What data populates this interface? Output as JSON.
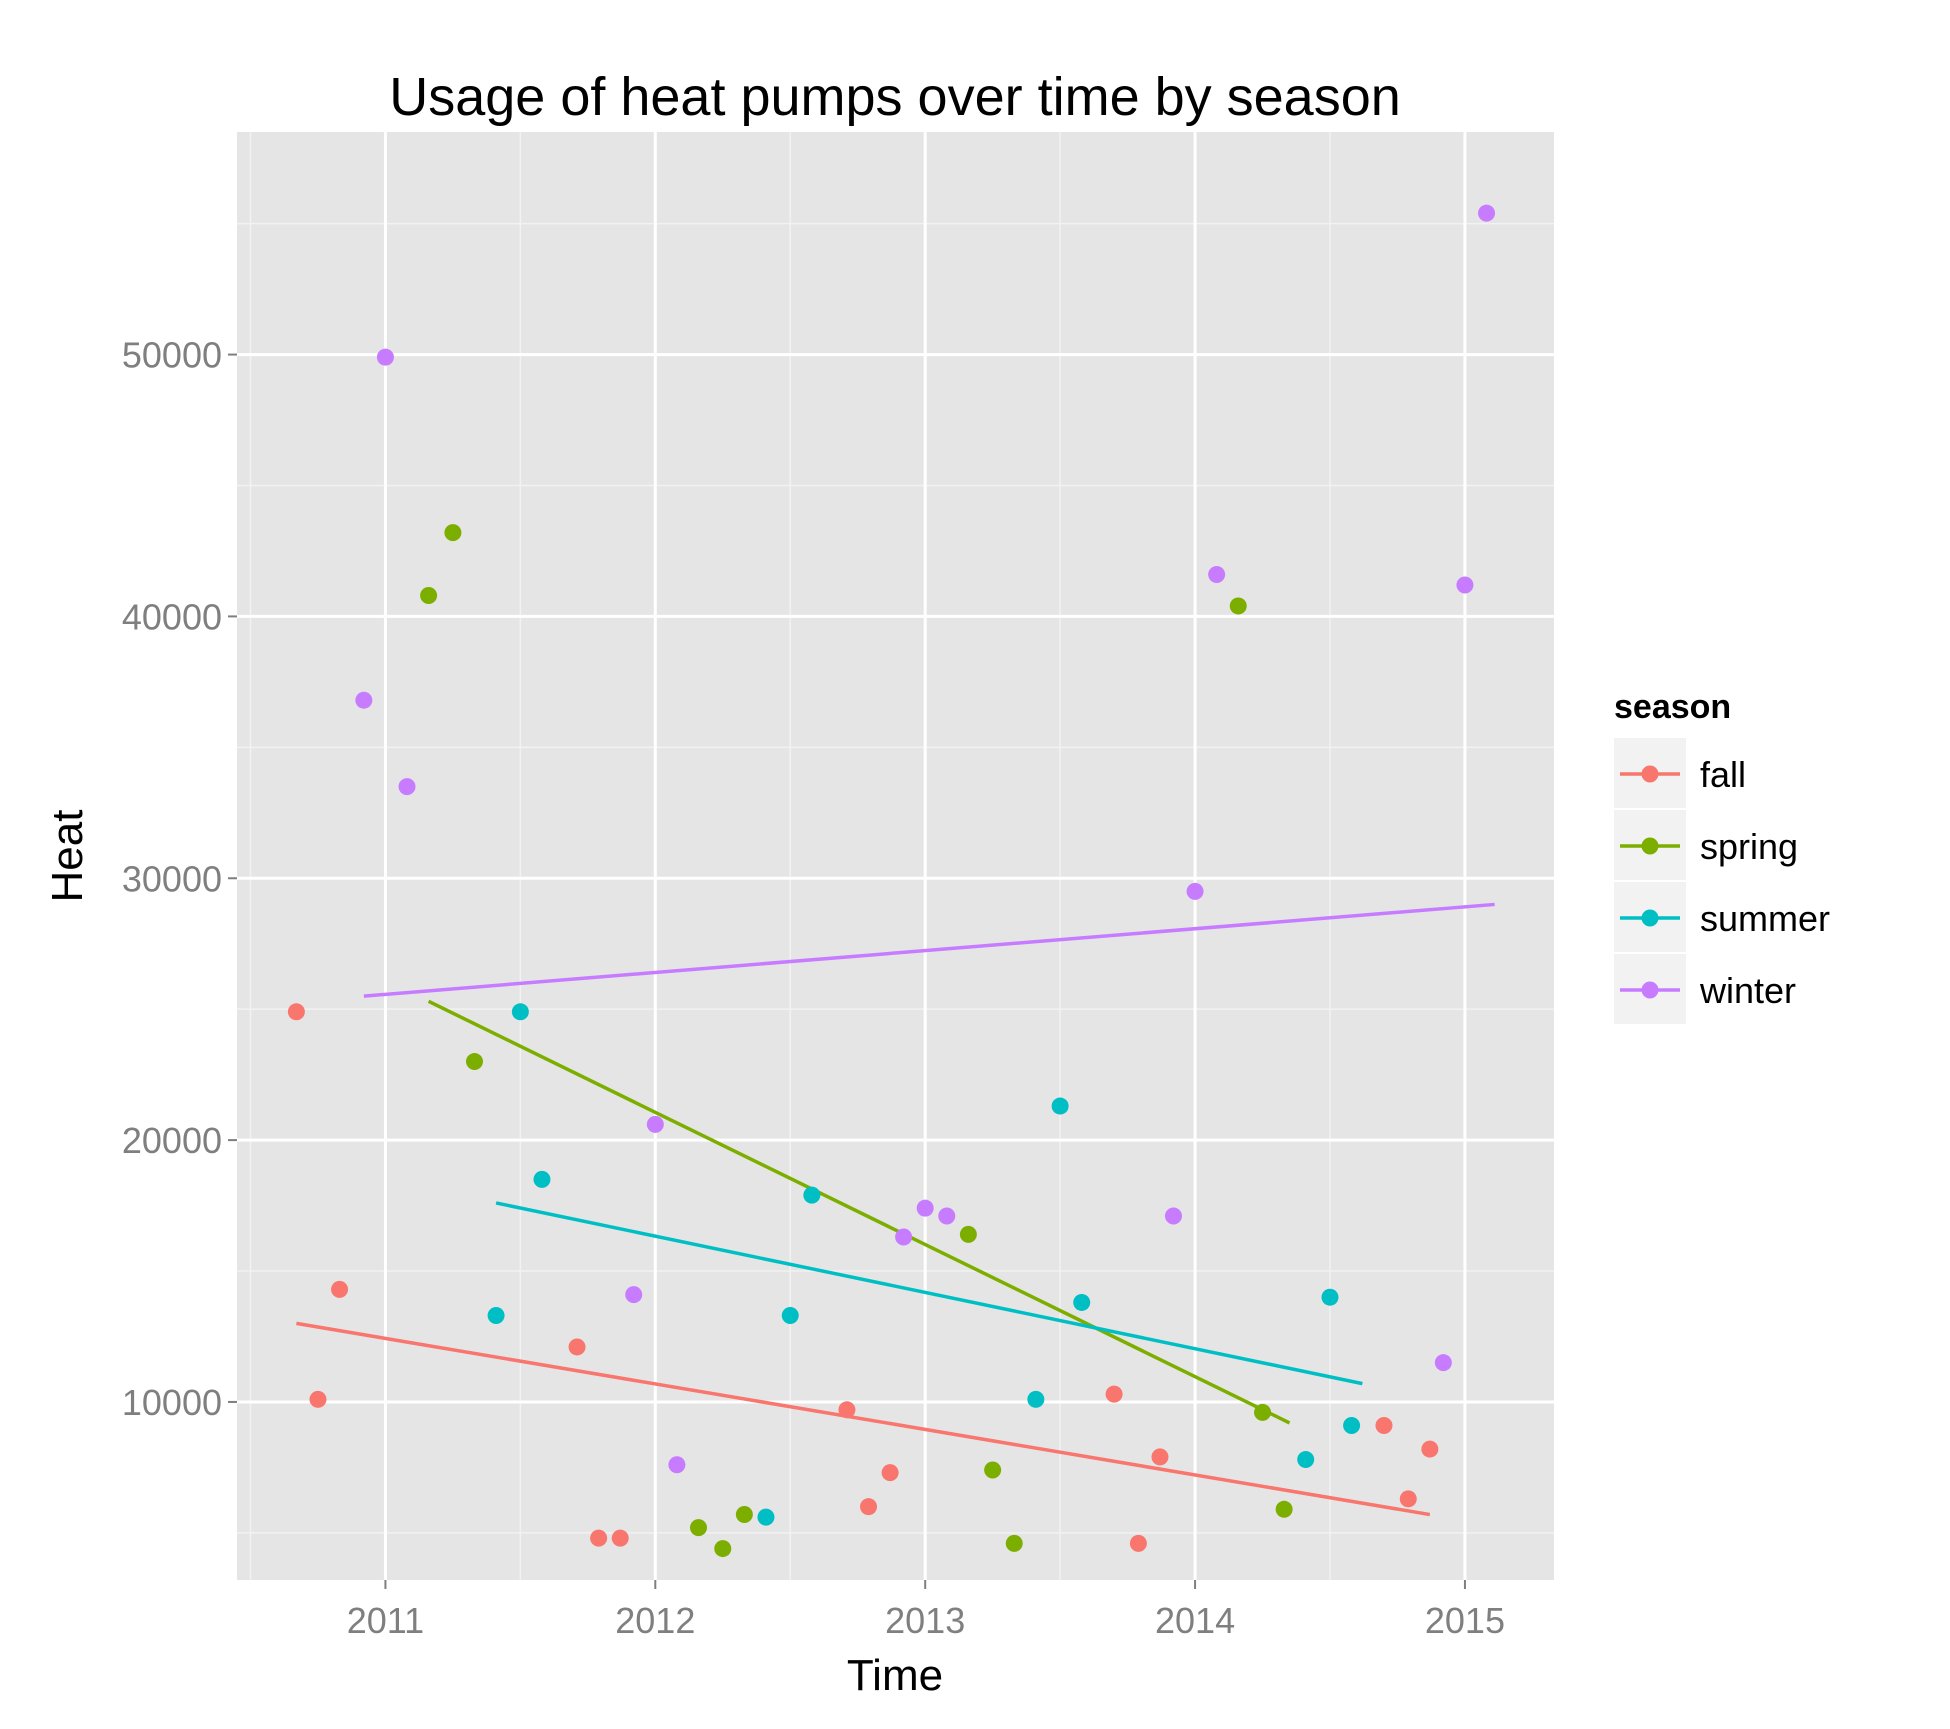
{
  "chart_data": {
    "type": "scatter",
    "title": "Usage of heat pumps over time by season",
    "xlabel": "Time",
    "ylabel": "Heat",
    "xlim": [
      2010.45,
      2015.33
    ],
    "ylim": [
      3200,
      58500
    ],
    "x_ticks": [
      2011,
      2012,
      2013,
      2014,
      2015
    ],
    "x_tick_labels": [
      "2011",
      "2012",
      "2013",
      "2014",
      "2015"
    ],
    "y_ticks": [
      10000,
      20000,
      30000,
      40000,
      50000
    ],
    "y_tick_labels": [
      "10000",
      "20000",
      "30000",
      "40000",
      "50000"
    ],
    "grid": true,
    "legend": {
      "title": "season",
      "position": "right"
    },
    "series": [
      {
        "name": "fall",
        "color": "#F8766D",
        "points": [
          [
            2010.67,
            24900
          ],
          [
            2010.75,
            10100
          ],
          [
            2010.83,
            14300
          ],
          [
            2011.71,
            12100
          ],
          [
            2011.79,
            4800
          ],
          [
            2011.87,
            4800
          ],
          [
            2012.71,
            9700
          ],
          [
            2012.79,
            6000
          ],
          [
            2012.87,
            7300
          ],
          [
            2013.7,
            10300
          ],
          [
            2013.79,
            4600
          ],
          [
            2013.87,
            7900
          ],
          [
            2014.7,
            9100
          ],
          [
            2014.79,
            6300
          ],
          [
            2014.87,
            8200
          ]
        ],
        "trend": [
          [
            2010.67,
            13000
          ],
          [
            2014.87,
            5700
          ]
        ]
      },
      {
        "name": "spring",
        "color": "#7CAE00",
        "points": [
          [
            2011.16,
            40800
          ],
          [
            2011.25,
            43200
          ],
          [
            2011.33,
            23000
          ],
          [
            2012.16,
            5200
          ],
          [
            2012.25,
            4400
          ],
          [
            2012.33,
            5700
          ],
          [
            2013.16,
            16400
          ],
          [
            2013.25,
            7400
          ],
          [
            2013.33,
            4600
          ],
          [
            2014.16,
            40400
          ],
          [
            2014.25,
            9600
          ],
          [
            2014.33,
            5900
          ]
        ],
        "trend": [
          [
            2011.16,
            25300
          ],
          [
            2014.35,
            9200
          ]
        ]
      },
      {
        "name": "summer",
        "color": "#00BFC4",
        "points": [
          [
            2011.41,
            13300
          ],
          [
            2011.5,
            24900
          ],
          [
            2011.58,
            18500
          ],
          [
            2012.41,
            5600
          ],
          [
            2012.5,
            13300
          ],
          [
            2012.58,
            17900
          ],
          [
            2013.41,
            10100
          ],
          [
            2013.5,
            21300
          ],
          [
            2013.58,
            13800
          ],
          [
            2014.41,
            7800
          ],
          [
            2014.5,
            14000
          ],
          [
            2014.58,
            9100
          ]
        ],
        "trend": [
          [
            2011.41,
            17600
          ],
          [
            2014.62,
            10700
          ]
        ]
      },
      {
        "name": "winter",
        "color": "#C77CFF",
        "points": [
          [
            2010.92,
            36800
          ],
          [
            2011.0,
            49900
          ],
          [
            2011.08,
            33500
          ],
          [
            2011.92,
            14100
          ],
          [
            2012.0,
            20600
          ],
          [
            2012.08,
            7600
          ],
          [
            2012.92,
            16300
          ],
          [
            2013.0,
            17400
          ],
          [
            2013.08,
            17100
          ],
          [
            2013.92,
            17100
          ],
          [
            2014.0,
            29500
          ],
          [
            2014.08,
            41600
          ],
          [
            2014.92,
            11500
          ],
          [
            2015.0,
            41200
          ],
          [
            2015.08,
            55400
          ]
        ],
        "trend": [
          [
            2010.92,
            25500
          ],
          [
            2015.11,
            29000
          ]
        ]
      }
    ]
  }
}
